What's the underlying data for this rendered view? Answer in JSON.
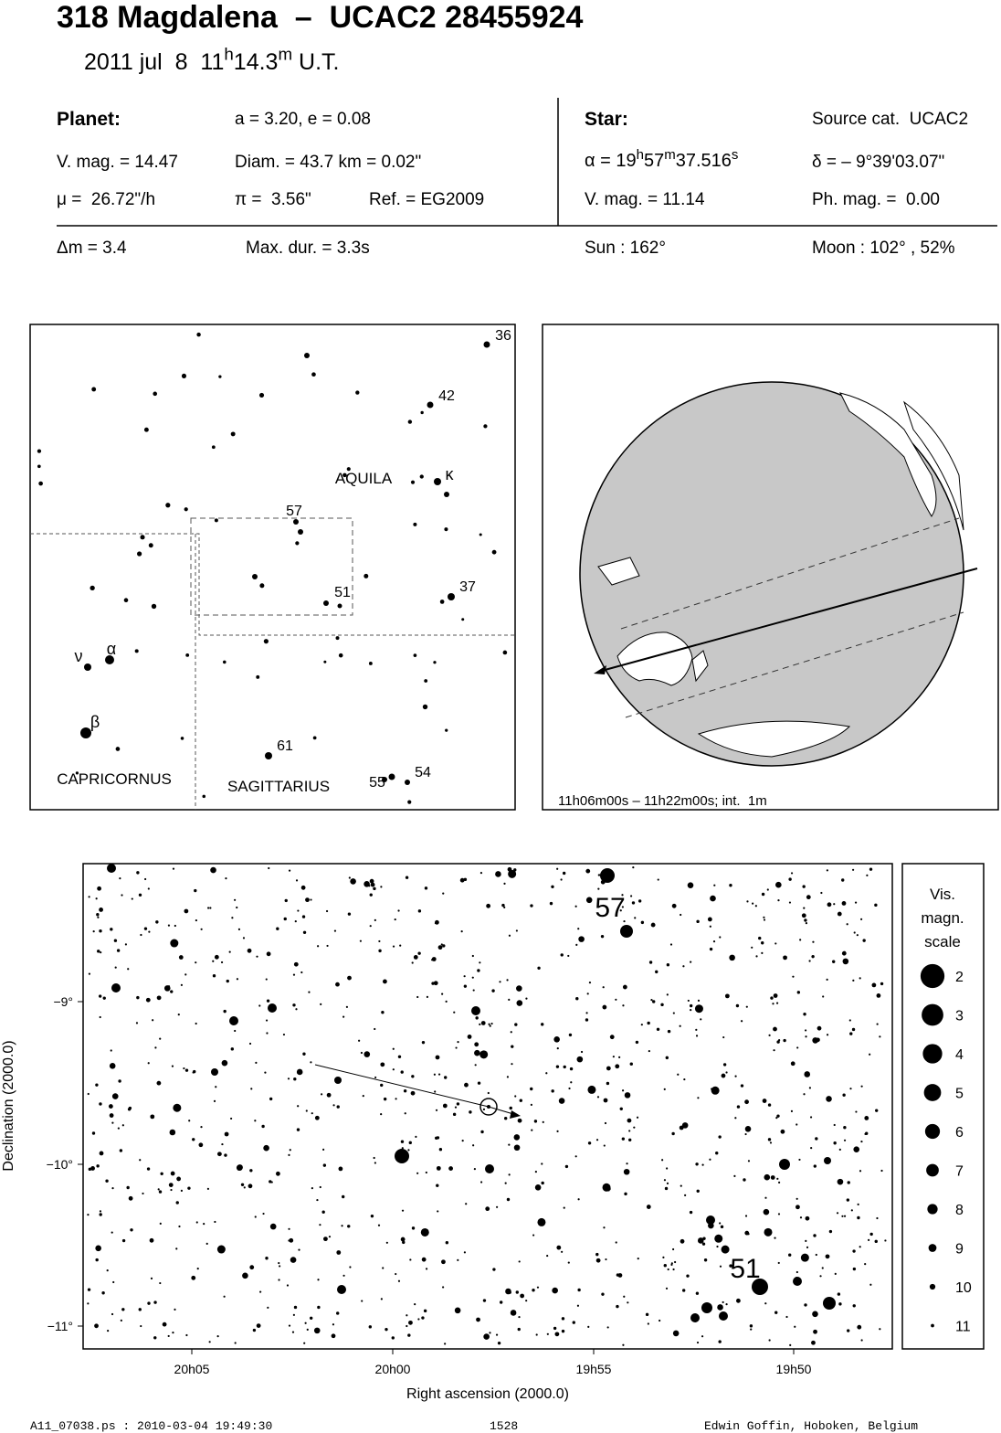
{
  "header": {
    "title": "318 Magdalena  –  UCAC2 28455924",
    "date": "2011 jul  8  11",
    "date_h": "h",
    "date_min": "14.3",
    "date_m": "m",
    "date_ut": "U.T."
  },
  "info": {
    "planet_label": "Planet:",
    "orbit": "a = 3.20, e = 0.08",
    "planet_vmag": "V. mag. = 14.47",
    "diam": "Diam. = 43.7 km = 0.02\"",
    "motion": "μ =  26.72\"/h",
    "parallax": "π =  3.56\"",
    "ref": "Ref. = EG2009",
    "star_label": "Star:",
    "source": "Source cat.  UCAC2",
    "ra": {
      "prefix": "α = 19",
      "h": "h",
      "min": "57",
      "m": "m",
      "sec": "37.516",
      "s": "s"
    },
    "dec": "δ = – 9°39'03.07\"",
    "star_vmag": "V. mag. = 11.14",
    "phmag": "Ph. mag. =  0.00",
    "dmag": "Δm = 3.4",
    "maxdur": "Max. dur. = 3.3s",
    "sun": "Sun : 162°",
    "moon": "Moon : 102° , 52%"
  },
  "finder": {
    "labels": [
      "36",
      "42",
      "κ",
      "AQUILA",
      "57",
      "51",
      "37",
      "ν",
      "α",
      "β",
      "61",
      "CAPRICORNUS",
      "SAGITTARIUS",
      "55",
      "54"
    ]
  },
  "globe": {
    "caption": "11h06m00s – 11h22m00s; int.  1m"
  },
  "chart": {
    "y_label": "Declination (2000.0)",
    "x_label": "Right ascension (2000.0)",
    "yticks": [
      "−9°",
      "−10°",
      "−11°"
    ],
    "xticks": [
      "20h05",
      "20h00",
      "19h55",
      "19h50"
    ],
    "star_labels": [
      "57",
      "51"
    ]
  },
  "legend": {
    "title": [
      "Vis.",
      "magn.",
      "scale"
    ],
    "magnitudes": [
      2,
      3,
      4,
      5,
      6,
      7,
      8,
      9,
      10,
      11
    ]
  },
  "footer": {
    "file": "A11_07038.ps : 2010-03-04 19:49:30",
    "page": "1528",
    "author": "Edwin Goffin, Hoboken, Belgium"
  }
}
